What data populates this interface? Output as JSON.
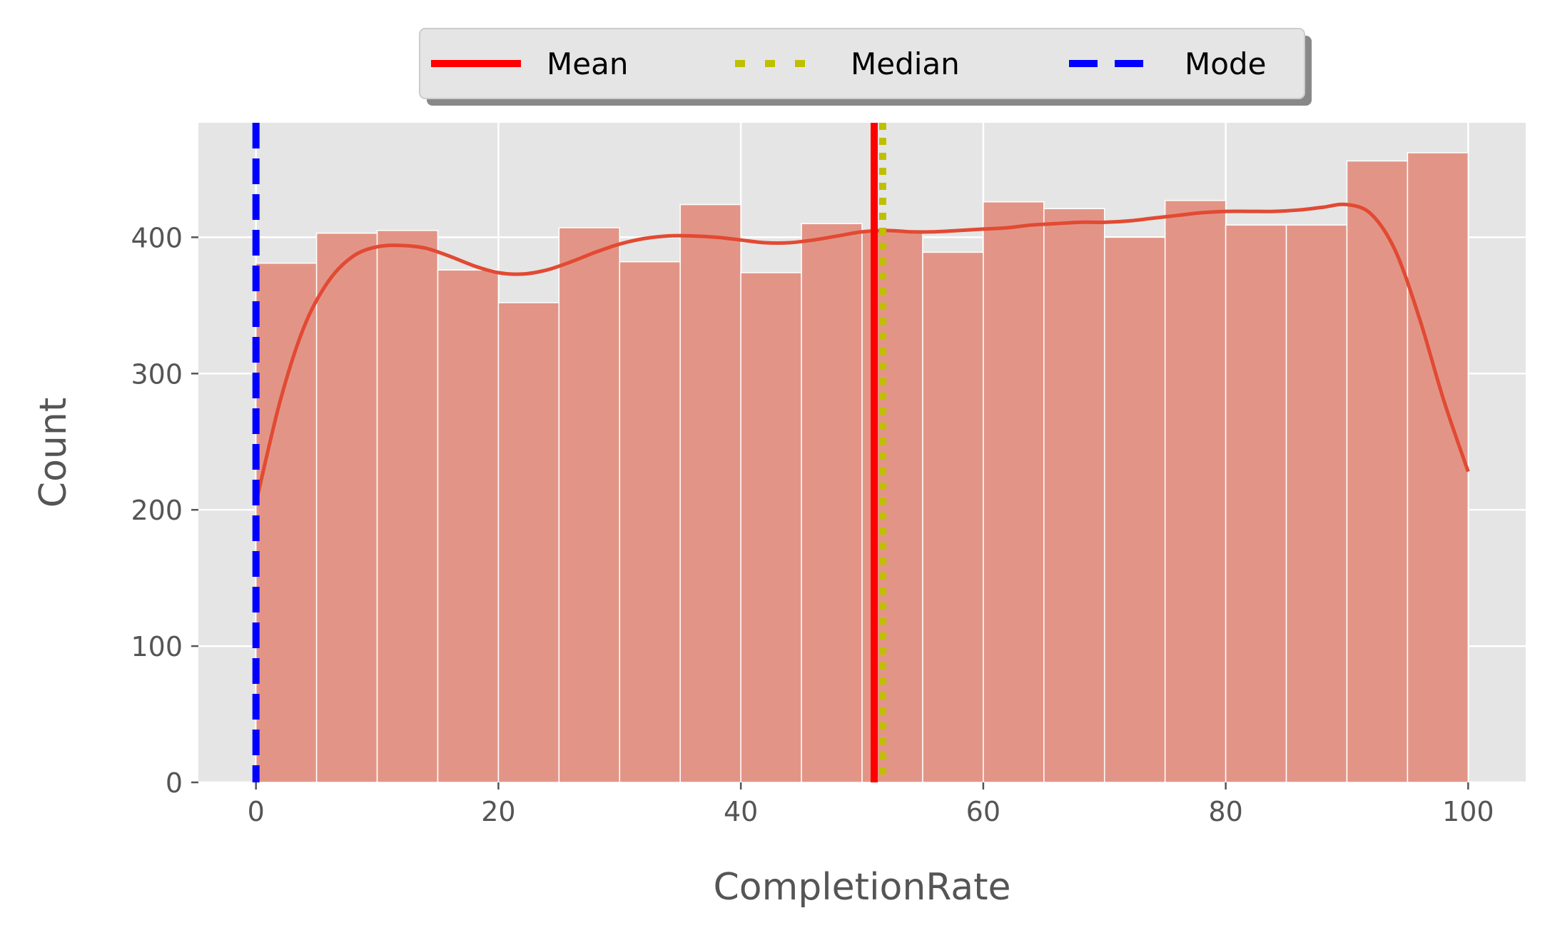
{
  "chart_data": {
    "type": "bar",
    "title": "",
    "xlabel": "CompletionRate",
    "ylabel": "Count",
    "xlim": [
      -4.75,
      104.75
    ],
    "ylim": [
      0,
      484
    ],
    "xticks": [
      0,
      20,
      40,
      60,
      80,
      100
    ],
    "yticks": [
      0,
      100,
      200,
      300,
      400
    ],
    "grid": true,
    "legend_placement": "top-center, outside plot",
    "bin_edges": [
      0,
      5,
      10,
      15,
      20,
      25,
      30,
      35,
      40,
      45,
      50,
      55,
      60,
      65,
      70,
      75,
      80,
      85,
      90,
      95,
      100
    ],
    "values": [
      381,
      403,
      405,
      376,
      352,
      407,
      382,
      424,
      374,
      410,
      404,
      389,
      426,
      421,
      400,
      427,
      409,
      409,
      456,
      462
    ],
    "kde": {
      "x": [
        0,
        2,
        4,
        6,
        8,
        10,
        12,
        14,
        16,
        18,
        20,
        22,
        24,
        26,
        28,
        30,
        32,
        34,
        36,
        38,
        40,
        42,
        44,
        46,
        48,
        50,
        52,
        54,
        56,
        58,
        60,
        62,
        64,
        66,
        68,
        70,
        72,
        74,
        76,
        78,
        80,
        82,
        84,
        86,
        88,
        90,
        92,
        94,
        96,
        98,
        100
      ],
      "y": [
        205,
        280,
        335,
        368,
        386,
        393,
        394,
        392,
        386,
        379,
        374,
        373,
        376,
        382,
        389,
        395,
        399,
        401,
        401,
        400,
        398,
        396,
        396,
        398,
        401,
        404,
        405,
        404,
        404,
        405,
        406,
        407,
        409,
        410,
        411,
        411,
        412,
        414,
        416,
        418,
        419,
        419,
        419,
        420,
        422,
        424,
        417,
        390,
        340,
        280,
        228
      ]
    },
    "series": [
      {
        "name": "Mean",
        "value": 51.0,
        "color": "#ff0000",
        "style": "solid"
      },
      {
        "name": "Median",
        "value": 51.7,
        "color": "#bfbf00",
        "style": "dotted"
      },
      {
        "name": "Mode",
        "value": 0,
        "color": "#0000ff",
        "style": "dashed"
      }
    ],
    "colors": {
      "bar_fill": "#e29587",
      "kde_line": "#e24a33",
      "plot_background": "#e5e5e5",
      "grid": "#ffffff",
      "legend_background": "#e5e5e5"
    }
  }
}
